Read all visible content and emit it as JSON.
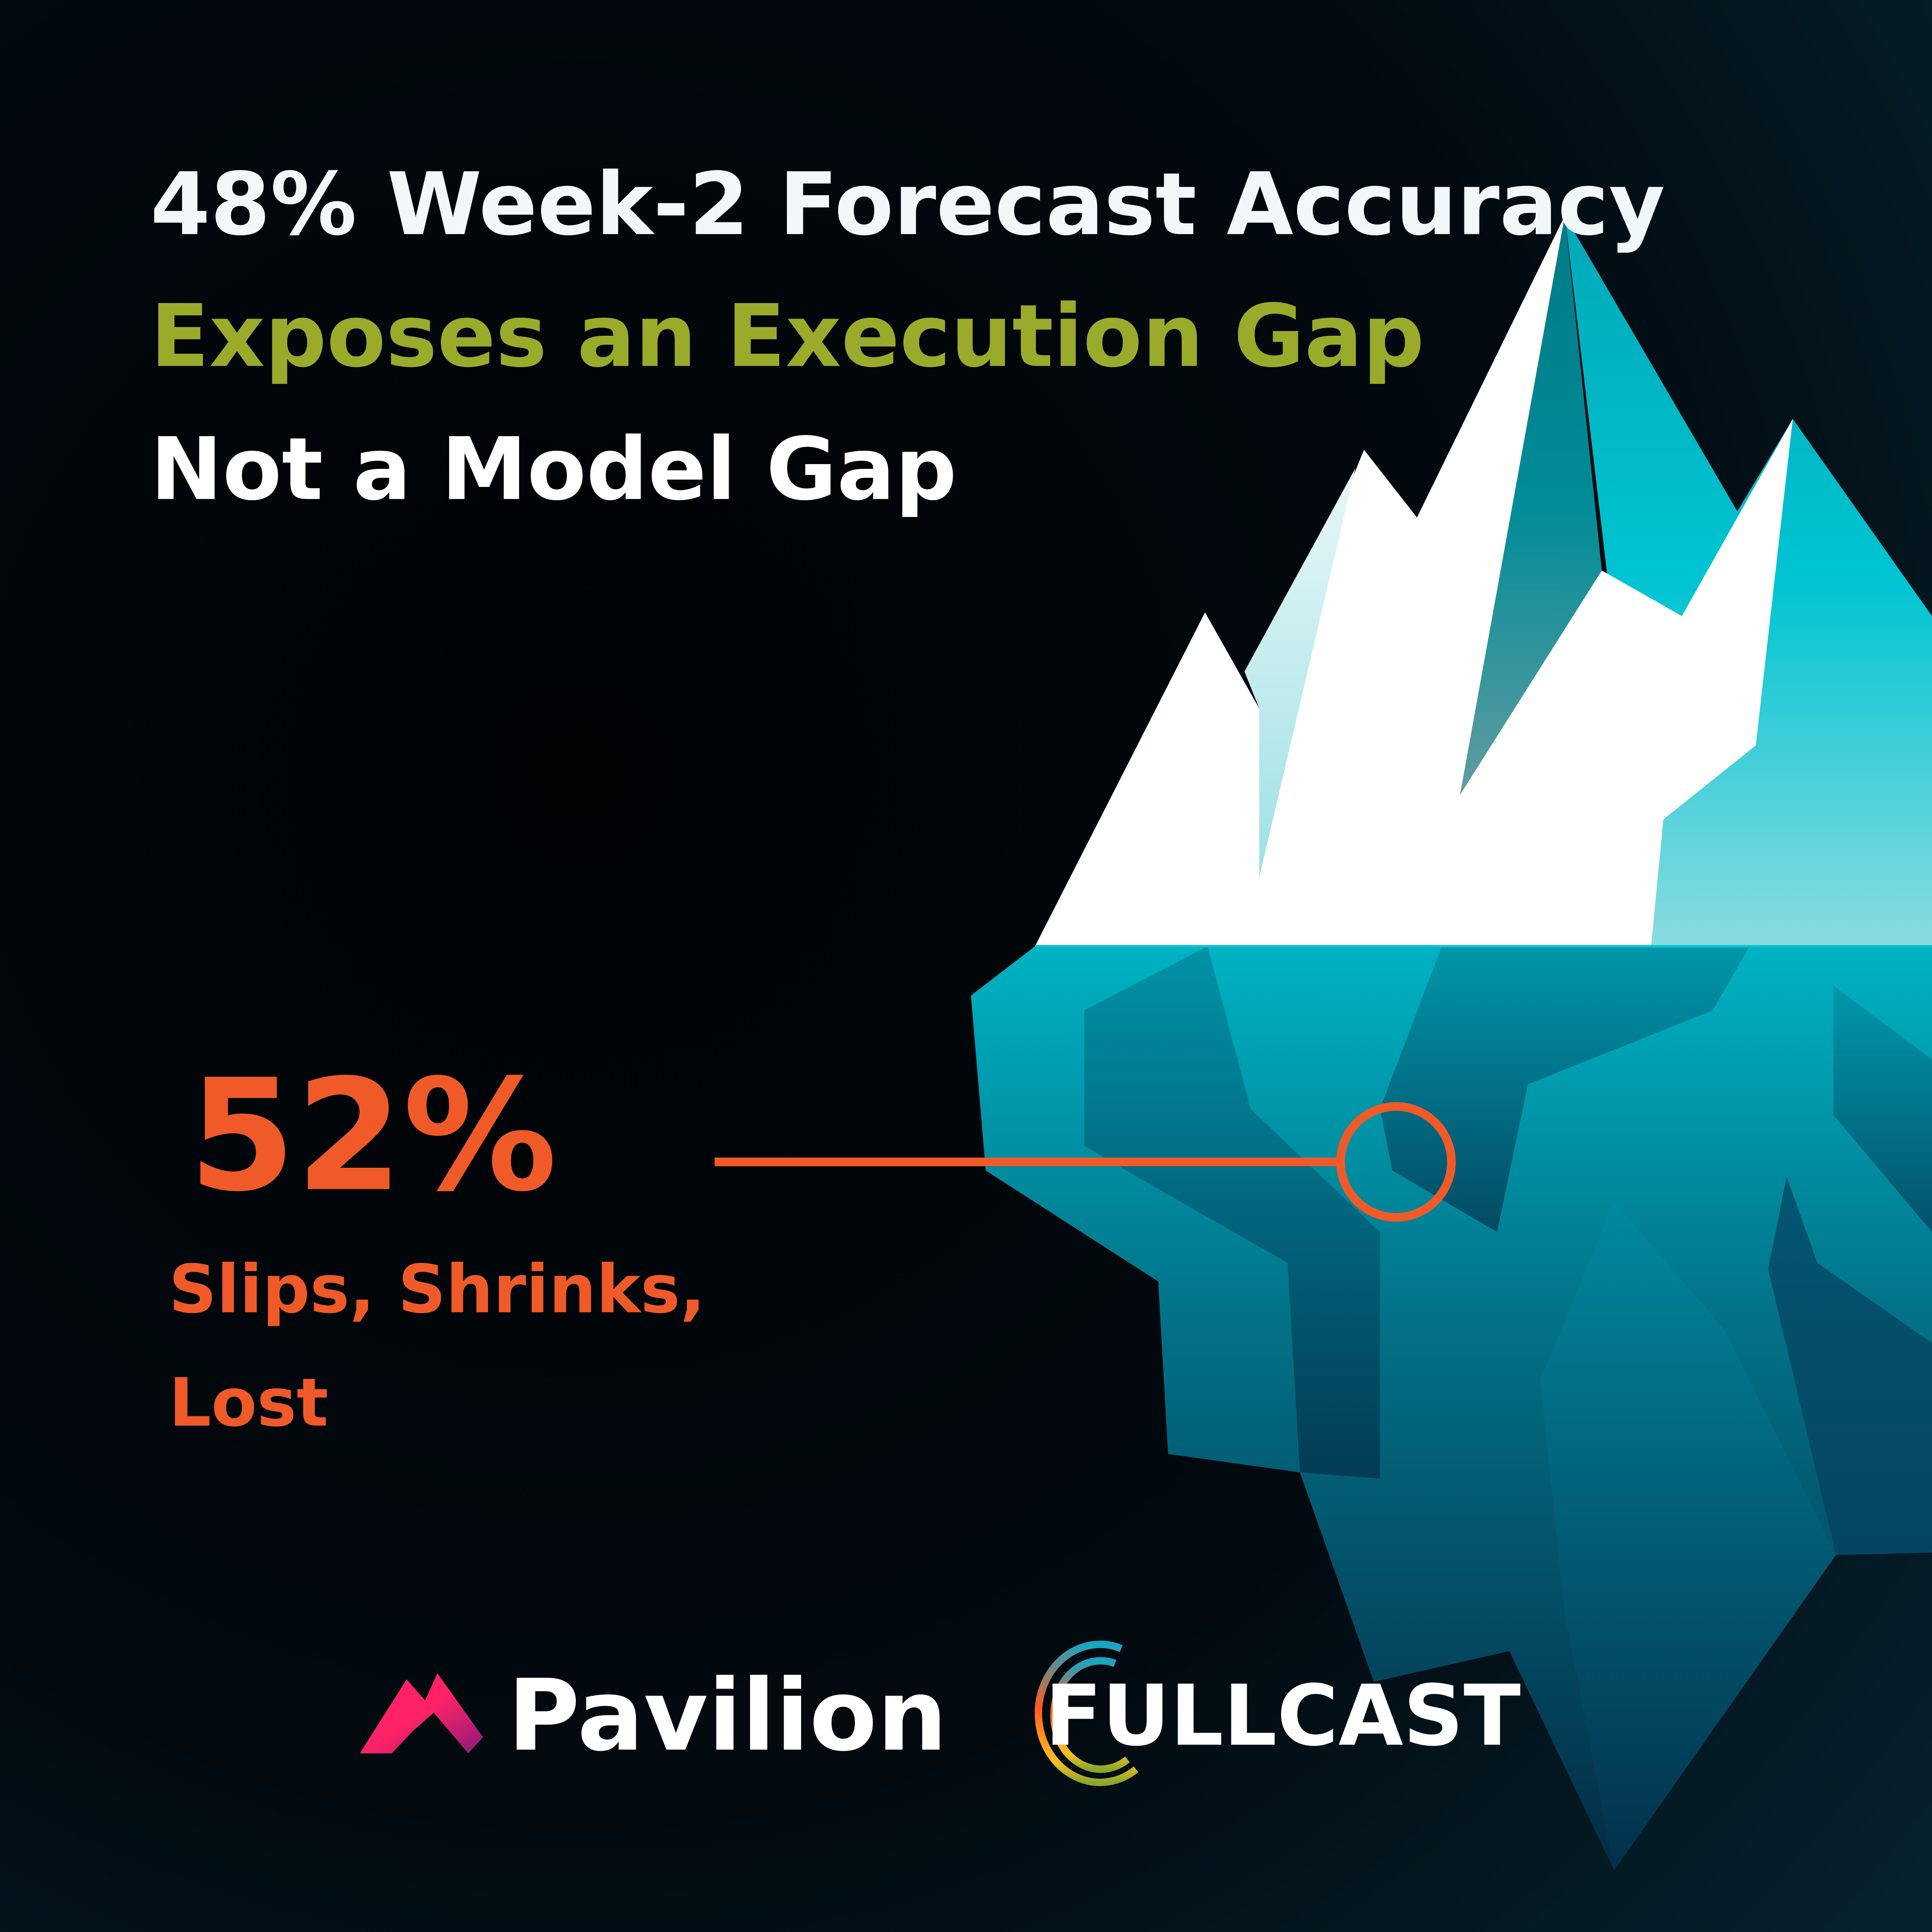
{
  "headline": {
    "line1": "48% Week-2 Forecast Accuracy",
    "line2": "Exposes an Execution Gap",
    "line3": "Not a Model Gap"
  },
  "stat": {
    "value": "52%",
    "label_line1": "Slips, Shrinks,",
    "label_line2": "Lost"
  },
  "logos": {
    "pavilion": "Pavilion",
    "fullcast": "FULLCAST"
  },
  "colors": {
    "background": "#02080d",
    "headline_white": "#f2f8fa",
    "headline_accent": "#9aaa2a",
    "stat_orange": "#f05a28",
    "iceberg_teal": "#00b8c8",
    "iceberg_deep": "#053a55",
    "pavilion_pink": "#ff2266"
  },
  "icons": [
    "iceberg-illustration",
    "callout-marker-icon",
    "pavilion-logo-icon",
    "fullcast-ring-icon"
  ]
}
